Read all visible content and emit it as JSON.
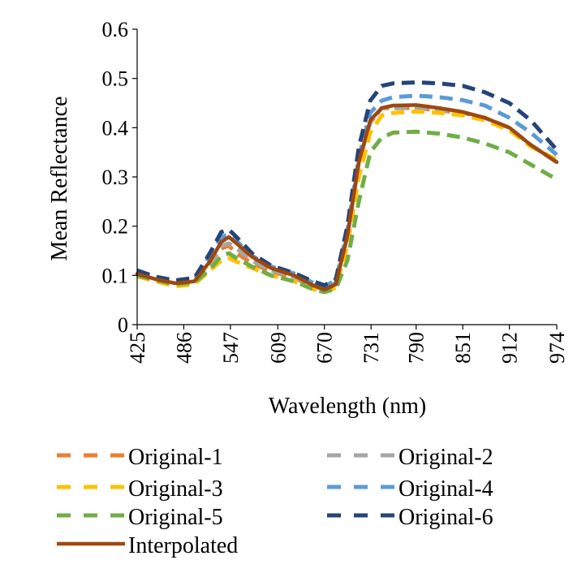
{
  "chart_data": {
    "type": "line",
    "xlabel": "Wavelength (nm)",
    "ylabel": "Mean Reflectance",
    "xlim": [
      425,
      974
    ],
    "ylim": [
      0,
      0.6
    ],
    "x_ticks": [
      "425",
      "486",
      "547",
      "609",
      "670",
      "731",
      "790",
      "851",
      "912",
      "974"
    ],
    "y_ticks": [
      "0",
      "0.1",
      "0.2",
      "0.3",
      "0.4",
      "0.5",
      "0.6"
    ],
    "grid": false,
    "legend_position": "bottom",
    "series": [
      {
        "name": "Original-1",
        "color": "#ED7D31",
        "dash": true,
        "points": [
          [
            425,
            0.105
          ],
          [
            450,
            0.092
          ],
          [
            475,
            0.083
          ],
          [
            500,
            0.088
          ],
          [
            520,
            0.125
          ],
          [
            535,
            0.155
          ],
          [
            545,
            0.16
          ],
          [
            555,
            0.145
          ],
          [
            575,
            0.125
          ],
          [
            600,
            0.108
          ],
          [
            630,
            0.095
          ],
          [
            655,
            0.078
          ],
          [
            670,
            0.072
          ],
          [
            685,
            0.085
          ],
          [
            700,
            0.18
          ],
          [
            715,
            0.33
          ],
          [
            730,
            0.41
          ],
          [
            745,
            0.44
          ],
          [
            760,
            0.44
          ],
          [
            790,
            0.44
          ],
          [
            820,
            0.435
          ],
          [
            851,
            0.43
          ],
          [
            880,
            0.42
          ],
          [
            912,
            0.4
          ],
          [
            940,
            0.365
          ],
          [
            974,
            0.33
          ]
        ]
      },
      {
        "name": "Original-2",
        "color": "#A5A5A5",
        "dash": true,
        "points": [
          [
            425,
            0.105
          ],
          [
            450,
            0.092
          ],
          [
            475,
            0.085
          ],
          [
            500,
            0.088
          ],
          [
            520,
            0.125
          ],
          [
            535,
            0.16
          ],
          [
            545,
            0.165
          ],
          [
            555,
            0.155
          ],
          [
            575,
            0.13
          ],
          [
            600,
            0.11
          ],
          [
            630,
            0.097
          ],
          [
            655,
            0.08
          ],
          [
            670,
            0.073
          ],
          [
            685,
            0.085
          ],
          [
            700,
            0.18
          ],
          [
            715,
            0.33
          ],
          [
            730,
            0.41
          ],
          [
            745,
            0.44
          ],
          [
            760,
            0.44
          ],
          [
            790,
            0.44
          ],
          [
            820,
            0.435
          ],
          [
            851,
            0.43
          ],
          [
            880,
            0.42
          ],
          [
            912,
            0.4
          ],
          [
            940,
            0.365
          ],
          [
            974,
            0.33
          ]
        ]
      },
      {
        "name": "Original-3",
        "color": "#FFC000",
        "dash": true,
        "points": [
          [
            425,
            0.098
          ],
          [
            450,
            0.088
          ],
          [
            475,
            0.078
          ],
          [
            500,
            0.082
          ],
          [
            520,
            0.11
          ],
          [
            535,
            0.13
          ],
          [
            545,
            0.135
          ],
          [
            555,
            0.128
          ],
          [
            575,
            0.115
          ],
          [
            600,
            0.1
          ],
          [
            630,
            0.088
          ],
          [
            655,
            0.072
          ],
          [
            670,
            0.066
          ],
          [
            685,
            0.075
          ],
          [
            700,
            0.16
          ],
          [
            715,
            0.3
          ],
          [
            730,
            0.39
          ],
          [
            745,
            0.425
          ],
          [
            760,
            0.43
          ],
          [
            790,
            0.433
          ],
          [
            820,
            0.43
          ],
          [
            851,
            0.425
          ],
          [
            880,
            0.415
          ],
          [
            912,
            0.395
          ],
          [
            940,
            0.362
          ],
          [
            974,
            0.335
          ]
        ]
      },
      {
        "name": "Original-4",
        "color": "#5B9BD5",
        "dash": true,
        "points": [
          [
            425,
            0.11
          ],
          [
            450,
            0.095
          ],
          [
            475,
            0.088
          ],
          [
            500,
            0.092
          ],
          [
            520,
            0.14
          ],
          [
            535,
            0.178
          ],
          [
            545,
            0.183
          ],
          [
            555,
            0.17
          ],
          [
            575,
            0.14
          ],
          [
            600,
            0.118
          ],
          [
            630,
            0.104
          ],
          [
            655,
            0.085
          ],
          [
            670,
            0.078
          ],
          [
            685,
            0.09
          ],
          [
            700,
            0.19
          ],
          [
            715,
            0.34
          ],
          [
            730,
            0.43
          ],
          [
            745,
            0.455
          ],
          [
            760,
            0.462
          ],
          [
            790,
            0.465
          ],
          [
            820,
            0.462
          ],
          [
            851,
            0.456
          ],
          [
            880,
            0.445
          ],
          [
            912,
            0.42
          ],
          [
            940,
            0.39
          ],
          [
            974,
            0.345
          ]
        ]
      },
      {
        "name": "Original-5",
        "color": "#70AD47",
        "dash": true,
        "points": [
          [
            425,
            0.1
          ],
          [
            450,
            0.09
          ],
          [
            475,
            0.082
          ],
          [
            500,
            0.086
          ],
          [
            520,
            0.112
          ],
          [
            535,
            0.14
          ],
          [
            545,
            0.145
          ],
          [
            555,
            0.135
          ],
          [
            575,
            0.118
          ],
          [
            600,
            0.1
          ],
          [
            630,
            0.088
          ],
          [
            655,
            0.072
          ],
          [
            670,
            0.066
          ],
          [
            685,
            0.073
          ],
          [
            700,
            0.13
          ],
          [
            715,
            0.25
          ],
          [
            730,
            0.35
          ],
          [
            745,
            0.38
          ],
          [
            760,
            0.39
          ],
          [
            790,
            0.392
          ],
          [
            820,
            0.388
          ],
          [
            851,
            0.38
          ],
          [
            880,
            0.368
          ],
          [
            912,
            0.35
          ],
          [
            940,
            0.325
          ],
          [
            974,
            0.295
          ]
        ]
      },
      {
        "name": "Original-6",
        "color": "#264478",
        "dash": true,
        "points": [
          [
            425,
            0.11
          ],
          [
            450,
            0.097
          ],
          [
            475,
            0.09
          ],
          [
            500,
            0.095
          ],
          [
            520,
            0.145
          ],
          [
            535,
            0.188
          ],
          [
            545,
            0.193
          ],
          [
            555,
            0.178
          ],
          [
            575,
            0.145
          ],
          [
            600,
            0.12
          ],
          [
            630,
            0.105
          ],
          [
            655,
            0.088
          ],
          [
            670,
            0.08
          ],
          [
            685,
            0.092
          ],
          [
            700,
            0.2
          ],
          [
            715,
            0.36
          ],
          [
            730,
            0.455
          ],
          [
            745,
            0.485
          ],
          [
            760,
            0.49
          ],
          [
            790,
            0.492
          ],
          [
            820,
            0.49
          ],
          [
            851,
            0.485
          ],
          [
            880,
            0.472
          ],
          [
            912,
            0.45
          ],
          [
            940,
            0.415
          ],
          [
            974,
            0.355
          ]
        ]
      },
      {
        "name": "Interpolated",
        "color": "#9E480E",
        "dash": false,
        "points": [
          [
            425,
            0.103
          ],
          [
            450,
            0.092
          ],
          [
            475,
            0.084
          ],
          [
            500,
            0.088
          ],
          [
            520,
            0.128
          ],
          [
            535,
            0.168
          ],
          [
            545,
            0.178
          ],
          [
            555,
            0.165
          ],
          [
            575,
            0.138
          ],
          [
            600,
            0.115
          ],
          [
            630,
            0.1
          ],
          [
            655,
            0.08
          ],
          [
            670,
            0.071
          ],
          [
            685,
            0.082
          ],
          [
            700,
            0.18
          ],
          [
            715,
            0.33
          ],
          [
            730,
            0.415
          ],
          [
            745,
            0.44
          ],
          [
            760,
            0.445
          ],
          [
            790,
            0.446
          ],
          [
            820,
            0.44
          ],
          [
            851,
            0.432
          ],
          [
            880,
            0.42
          ],
          [
            912,
            0.4
          ],
          [
            940,
            0.365
          ],
          [
            974,
            0.33
          ]
        ]
      }
    ]
  }
}
